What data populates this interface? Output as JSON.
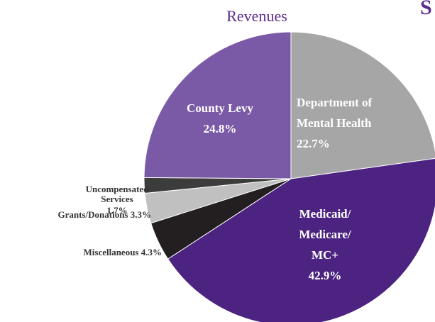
{
  "chart_data": {
    "type": "pie",
    "title": "Revenues",
    "heading": "S",
    "categories": [
      "Department of Mental Health",
      "Medicaid/ Medicare/ MC+",
      "Miscellaneous",
      "Grants/Donations",
      "Uncompensated Services",
      "County Levy"
    ],
    "values": [
      22.7,
      42.9,
      4.3,
      3.3,
      1.7,
      24.8
    ],
    "value_labels": [
      "22.7%",
      "42.9%",
      "4.3%",
      "3.3%",
      "1.7%",
      "24.8%"
    ],
    "colors": [
      "#a6a6a6",
      "#4d2382",
      "#231f20",
      "#c0c0c0",
      "#3c3c3c",
      "#7a5aa6"
    ]
  }
}
